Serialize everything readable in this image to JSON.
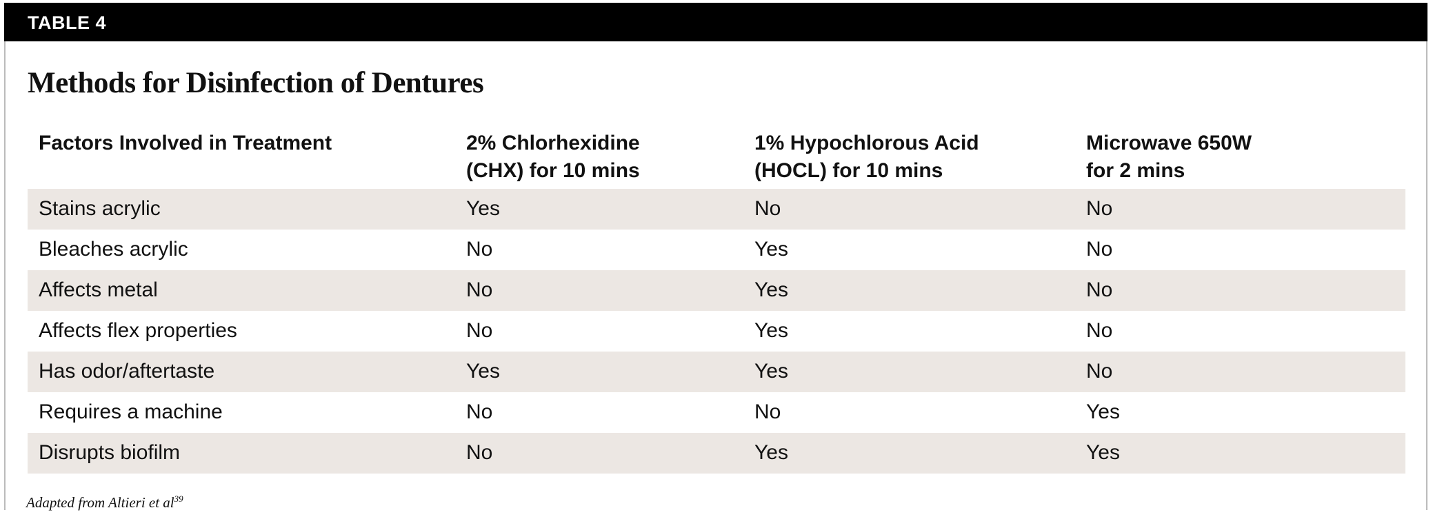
{
  "table_label": "TABLE 4",
  "title": "Methods for Disinfection of Dentures",
  "columns": [
    [
      "Factors Involved in Treatment"
    ],
    [
      "2% Chlorhexidine",
      "(CHX) for 10 mins"
    ],
    [
      "1% Hypochlorous Acid",
      "(HOCL) for 10 mins"
    ],
    [
      "Microwave 650W",
      "for 2 mins"
    ]
  ],
  "rows": [
    [
      "Stains acrylic",
      "Yes",
      "No",
      "No"
    ],
    [
      "Bleaches acrylic",
      "No",
      "Yes",
      "No"
    ],
    [
      "Affects metal",
      "No",
      "Yes",
      "No"
    ],
    [
      "Affects flex properties",
      "No",
      "Yes",
      "No"
    ],
    [
      "Has odor/aftertaste",
      "Yes",
      "Yes",
      "No"
    ],
    [
      "Requires a machine",
      "No",
      "No",
      "Yes"
    ],
    [
      "Disrupts biofilm",
      "No",
      "Yes",
      "Yes"
    ]
  ],
  "footnote": {
    "text": "Adapted from Altieri et al",
    "ref": "39"
  },
  "colors": {
    "header_bar": "#000000",
    "alt_row": "#ece7e3"
  }
}
